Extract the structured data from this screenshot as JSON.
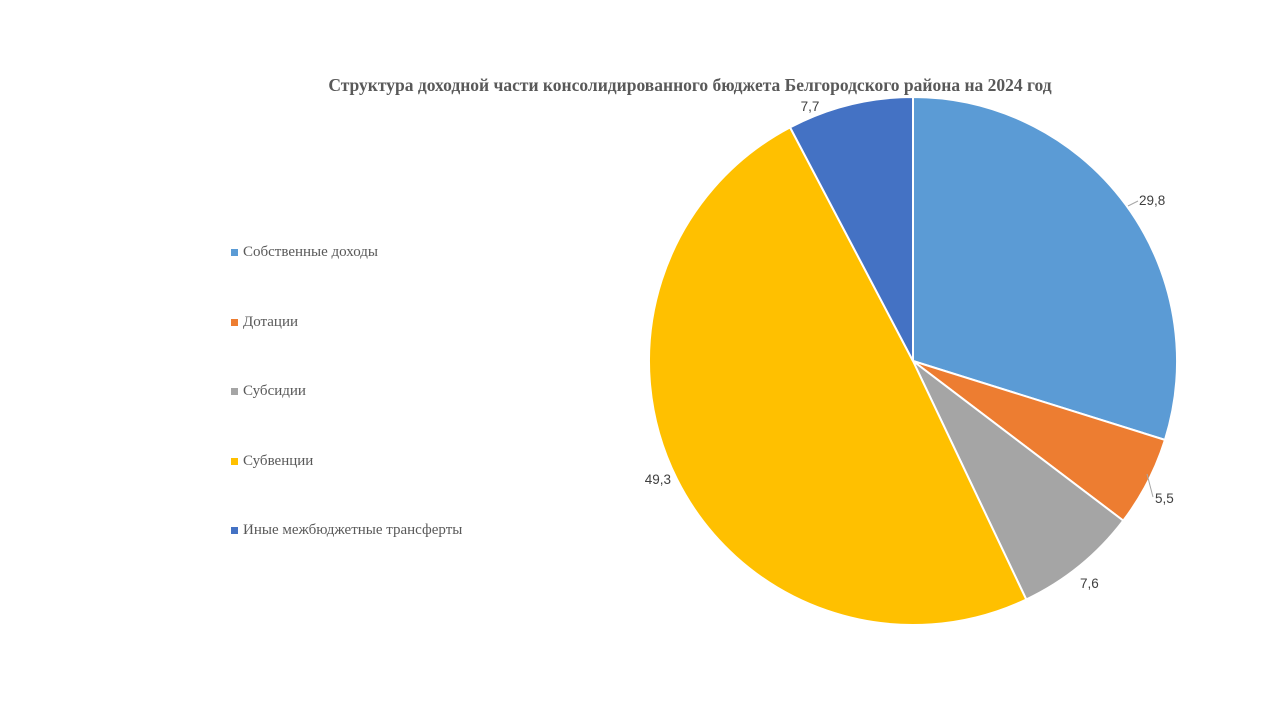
{
  "chart_data": {
    "type": "pie",
    "title": "Структура доходной части консолидированного бюджета Белгородского района на 2024 год",
    "legend_position": "left",
    "categories": [
      "Собственные доходы",
      "Дотации",
      "Субсидии",
      "Субвенции",
      "Иные межбюджетные трансферты"
    ],
    "values": [
      29.8,
      5.5,
      7.6,
      49.3,
      7.7
    ],
    "labels": [
      "29,8",
      "5,5",
      "7,6",
      "49,3",
      "7,7"
    ],
    "colors": [
      "#5B9BD5",
      "#ED7D31",
      "#A5A5A5",
      "#FFC000",
      "#4472C4"
    ]
  }
}
